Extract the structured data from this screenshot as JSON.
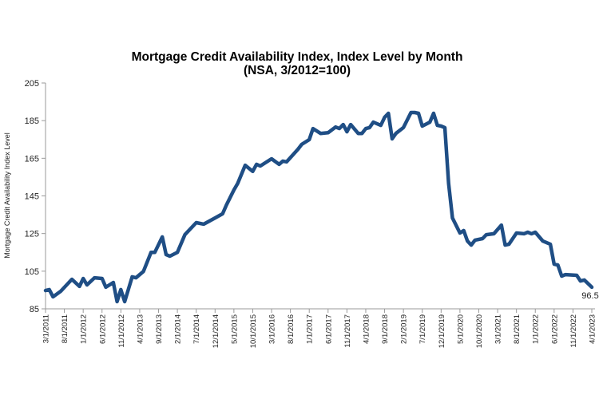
{
  "chart_data": {
    "type": "line",
    "title": "Mortgage Credit Availability Index, Index Level by Month",
    "subtitle": "(NSA, 3/2012=100)",
    "xlabel": "",
    "ylabel": "Mortgage Credit Availability Index Level",
    "ylim": [
      85,
      205
    ],
    "yticks": [
      85,
      105,
      125,
      145,
      165,
      185,
      205
    ],
    "xlim": [
      "3/2011",
      "4/2023"
    ],
    "xtick_labels": [
      "3/1/2011",
      "8/1/2011",
      "1/1/2012",
      "6/1/2012",
      "11/1/2012",
      "4/1/2013",
      "9/1/2013",
      "2/1/2014",
      "7/1/2014",
      "12/1/2014",
      "5/1/2015",
      "10/1/2015",
      "3/1/2016",
      "8/1/2016",
      "1/1/2017",
      "6/1/2017",
      "11/1/2017",
      "4/1/2018",
      "9/1/2018",
      "2/1/2019",
      "7/1/2019",
      "12/1/2019",
      "5/1/2020",
      "10/1/2020",
      "3/1/2021",
      "8/1/2021",
      "1/1/2022",
      "6/1/2022",
      "11/1/2022",
      "4/1/2023"
    ],
    "grid": false,
    "line_color": "#1f4e85",
    "end_label": "96.5",
    "series": [
      {
        "points": [
          [
            "3/2011",
            94.7
          ],
          [
            "4/2011",
            95.2
          ],
          [
            "5/2011",
            91.4
          ],
          [
            "7/2011",
            94.3
          ],
          [
            "10/2011",
            100.7
          ],
          [
            "12/2011",
            96.9
          ],
          [
            "1/2012",
            101.1
          ],
          [
            "2/2012",
            97.7
          ],
          [
            "4/2012",
            101.5
          ],
          [
            "6/2012",
            101.1
          ],
          [
            "7/2012",
            96.5
          ],
          [
            "9/2012",
            99.0
          ],
          [
            "10/2012",
            88.8
          ],
          [
            "11/2012",
            95.2
          ],
          [
            "12/2012",
            88.8
          ],
          [
            "2/2013",
            102.0
          ],
          [
            "3/2013",
            101.5
          ],
          [
            "5/2013",
            104.9
          ],
          [
            "7/2013",
            115.0
          ],
          [
            "8/2013",
            115.0
          ],
          [
            "10/2013",
            123.2
          ],
          [
            "11/2013",
            113.8
          ],
          [
            "12/2013",
            113.0
          ],
          [
            "2/2014",
            115.0
          ],
          [
            "4/2014",
            124.4
          ],
          [
            "7/2014",
            130.8
          ],
          [
            "9/2014",
            130.0
          ],
          [
            "12/2014",
            133.3
          ],
          [
            "2/2015",
            135.5
          ],
          [
            "3/2015",
            140.1
          ],
          [
            "5/2015",
            148.2
          ],
          [
            "6/2015",
            151.6
          ],
          [
            "8/2015",
            161.3
          ],
          [
            "10/2015",
            158.0
          ],
          [
            "11/2015",
            161.8
          ],
          [
            "12/2015",
            160.9
          ],
          [
            "3/2016",
            164.7
          ],
          [
            "5/2016",
            161.8
          ],
          [
            "6/2016",
            163.5
          ],
          [
            "7/2016",
            163.1
          ],
          [
            "10/2016",
            169.8
          ],
          [
            "11/2016",
            172.4
          ],
          [
            "1/2017",
            174.9
          ],
          [
            "2/2017",
            180.8
          ],
          [
            "4/2017",
            178.2
          ],
          [
            "6/2017",
            178.6
          ],
          [
            "8/2017",
            181.6
          ],
          [
            "9/2017",
            180.8
          ],
          [
            "10/2017",
            182.9
          ],
          [
            "11/2017",
            179.1
          ],
          [
            "12/2017",
            182.9
          ],
          [
            "2/2018",
            178.2
          ],
          [
            "3/2018",
            178.2
          ],
          [
            "4/2018",
            180.8
          ],
          [
            "5/2018",
            181.3
          ],
          [
            "6/2018",
            184.2
          ],
          [
            "8/2018",
            182.5
          ],
          [
            "9/2018",
            186.8
          ],
          [
            "10/2018",
            188.9
          ],
          [
            "11/2018",
            175.3
          ],
          [
            "12/2018",
            178.2
          ],
          [
            "2/2019",
            181.3
          ],
          [
            "4/2019",
            189.3
          ],
          [
            "5/2019",
            189.3
          ],
          [
            "6/2019",
            188.9
          ],
          [
            "7/2019",
            182.1
          ],
          [
            "9/2019",
            184.2
          ],
          [
            "10/2019",
            188.9
          ],
          [
            "11/2019",
            182.5
          ],
          [
            "12/2019",
            182.1
          ],
          [
            "1/2020",
            181.3
          ],
          [
            "2/2020",
            151.6
          ],
          [
            "3/2020",
            133.3
          ],
          [
            "5/2020",
            125.3
          ],
          [
            "6/2020",
            126.6
          ],
          [
            "7/2020",
            121.0
          ],
          [
            "8/2020",
            118.9
          ],
          [
            "9/2020",
            121.5
          ],
          [
            "11/2020",
            122.3
          ],
          [
            "12/2020",
            124.4
          ],
          [
            "2/2021",
            124.9
          ],
          [
            "4/2021",
            129.5
          ],
          [
            "5/2021",
            118.9
          ],
          [
            "6/2021",
            119.3
          ],
          [
            "8/2021",
            125.3
          ],
          [
            "10/2021",
            124.9
          ],
          [
            "11/2021",
            125.7
          ],
          [
            "12/2021",
            124.9
          ],
          [
            "1/2022",
            125.7
          ],
          [
            "3/2022",
            121.0
          ],
          [
            "5/2022",
            119.3
          ],
          [
            "6/2022",
            108.7
          ],
          [
            "7/2022",
            108.3
          ],
          [
            "8/2022",
            102.4
          ],
          [
            "9/2022",
            103.2
          ],
          [
            "12/2022",
            102.8
          ],
          [
            "1/2023",
            99.8
          ],
          [
            "2/2023",
            100.3
          ],
          [
            "4/2023",
            96.5
          ]
        ]
      }
    ]
  }
}
